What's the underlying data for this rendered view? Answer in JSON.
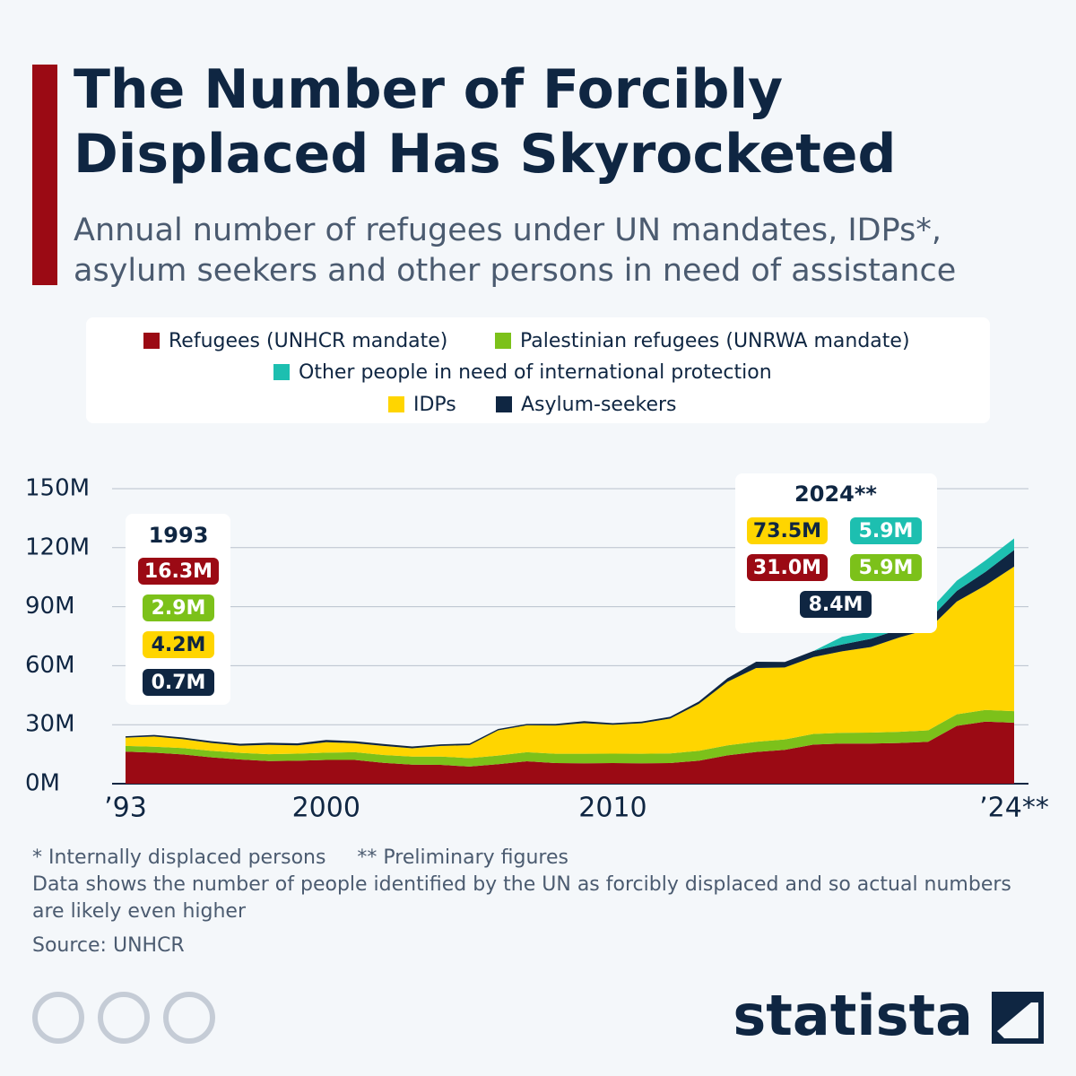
{
  "chart_data": {
    "type": "stacked_area",
    "title": "The Number of Forcibly Displaced Has Skyrocketed",
    "subtitle": [
      "Annual number of refugees under UN mandates, IDPs*,",
      "asylum seekers and other persons in need of assistance"
    ],
    "x": [
      1993,
      1994,
      1995,
      1996,
      1997,
      1998,
      1999,
      2000,
      2001,
      2002,
      2003,
      2004,
      2005,
      2006,
      2007,
      2008,
      2009,
      2010,
      2011,
      2012,
      2013,
      2014,
      2015,
      2016,
      2017,
      2018,
      2019,
      2020,
      2021,
      2022,
      2023,
      2024
    ],
    "xlim": [
      1993,
      2024
    ],
    "xticks": [
      {
        "value": 1993,
        "label": "’93"
      },
      2000,
      2010,
      {
        "value": 2024,
        "label": "’24**"
      }
    ],
    "ylim": [
      0,
      150
    ],
    "yticks": [
      {
        "value": 0,
        "label": "0M"
      },
      {
        "value": 30,
        "label": "30M"
      },
      {
        "value": 60,
        "label": "60M"
      },
      {
        "value": 90,
        "label": "90M"
      },
      {
        "value": 120,
        "label": "120M"
      },
      {
        "value": 150,
        "label": "150M"
      }
    ],
    "grid": true,
    "series": [
      {
        "name": "Refugees (UNHCR mandate)",
        "color": "#9b0a14",
        "values": [
          16.3,
          15.8,
          14.9,
          13.4,
          12.3,
          11.5,
          11.7,
          12.1,
          12.1,
          10.6,
          9.7,
          9.6,
          8.7,
          9.9,
          11.4,
          10.5,
          10.4,
          10.5,
          10.4,
          10.5,
          11.7,
          14.4,
          16.1,
          17.2,
          19.9,
          20.4,
          20.4,
          20.7,
          21.3,
          29.4,
          31.6,
          31.0
        ],
        "value_labels": [
          "16.3M",
          null,
          null,
          null,
          null,
          null,
          null,
          null,
          null,
          null,
          null,
          null,
          null,
          null,
          null,
          null,
          null,
          null,
          null,
          null,
          null,
          null,
          null,
          null,
          null,
          null,
          null,
          null,
          null,
          null,
          null,
          "31.0M"
        ]
      },
      {
        "name": "Palestinian refugees (UNRWA mandate)",
        "color": "#7cc11a",
        "values": [
          2.9,
          3.0,
          3.2,
          3.3,
          3.4,
          3.5,
          3.6,
          3.7,
          3.9,
          4.0,
          4.1,
          4.2,
          4.3,
          4.4,
          4.6,
          4.7,
          4.8,
          4.8,
          4.8,
          4.9,
          5.0,
          5.1,
          5.2,
          5.3,
          5.4,
          5.5,
          5.6,
          5.7,
          5.8,
          5.9,
          5.9,
          5.9
        ],
        "value_labels": [
          "2.9M",
          null,
          null,
          null,
          null,
          null,
          null,
          null,
          null,
          null,
          null,
          null,
          null,
          null,
          null,
          null,
          null,
          null,
          null,
          null,
          null,
          null,
          null,
          null,
          null,
          null,
          null,
          null,
          null,
          null,
          null,
          "5.9M"
        ]
      },
      {
        "name": "IDPs",
        "color": "#ffd500",
        "values": [
          4.2,
          5.2,
          4.5,
          4.0,
          3.6,
          4.8,
          4.2,
          5.3,
          4.6,
          4.6,
          4.2,
          5.4,
          6.6,
          12.8,
          13.7,
          14.4,
          15.6,
          14.7,
          15.5,
          17.7,
          23.9,
          32.3,
          37.5,
          36.6,
          39.1,
          41.4,
          43.5,
          48.0,
          51.3,
          57.3,
          63.3,
          73.5
        ],
        "value_labels": [
          "4.2M",
          null,
          null,
          null,
          null,
          null,
          null,
          null,
          null,
          null,
          null,
          null,
          null,
          null,
          null,
          null,
          null,
          null,
          null,
          null,
          null,
          null,
          null,
          null,
          null,
          null,
          null,
          null,
          null,
          null,
          null,
          "73.5M"
        ]
      },
      {
        "name": "Asylum-seekers",
        "color": "#0f2642",
        "values": [
          0.7,
          0.8,
          0.9,
          0.9,
          1.0,
          1.0,
          1.0,
          1.1,
          1.0,
          1.0,
          0.9,
          0.8,
          0.8,
          0.7,
          0.7,
          0.8,
          1.0,
          0.8,
          0.9,
          0.9,
          1.2,
          1.8,
          3.2,
          2.8,
          3.1,
          3.5,
          4.2,
          4.1,
          4.6,
          5.4,
          6.9,
          8.4
        ],
        "value_labels": [
          "0.7M",
          null,
          null,
          null,
          null,
          null,
          null,
          null,
          null,
          null,
          null,
          null,
          null,
          null,
          null,
          null,
          null,
          null,
          null,
          null,
          null,
          null,
          null,
          null,
          null,
          null,
          null,
          null,
          null,
          null,
          null,
          "8.4M"
        ]
      },
      {
        "name": "Other people in need of international protection",
        "color": "#1dbfb0",
        "values": [
          0,
          0,
          0,
          0,
          0,
          0,
          0,
          0,
          0,
          0,
          0,
          0,
          0,
          0,
          0,
          0,
          0,
          0,
          0,
          0,
          0,
          0,
          0,
          0,
          0,
          3.9,
          3.6,
          3.9,
          4.4,
          5.2,
          5.8,
          5.9
        ],
        "value_labels": [
          null,
          null,
          null,
          null,
          null,
          null,
          null,
          null,
          null,
          null,
          null,
          null,
          null,
          null,
          null,
          null,
          null,
          null,
          null,
          null,
          null,
          null,
          null,
          null,
          null,
          null,
          null,
          null,
          null,
          null,
          null,
          "5.9M"
        ]
      }
    ],
    "annotations": [
      "1993",
      "2024**"
    ],
    "footnotes": [
      "* Internally displaced persons     ** Preliminary figures",
      "Data shows the number of people identified by the UN as forcibly displaced and so actual numbers",
      "are likely even higher"
    ],
    "source": "Source: UNHCR",
    "brand": "statista"
  }
}
